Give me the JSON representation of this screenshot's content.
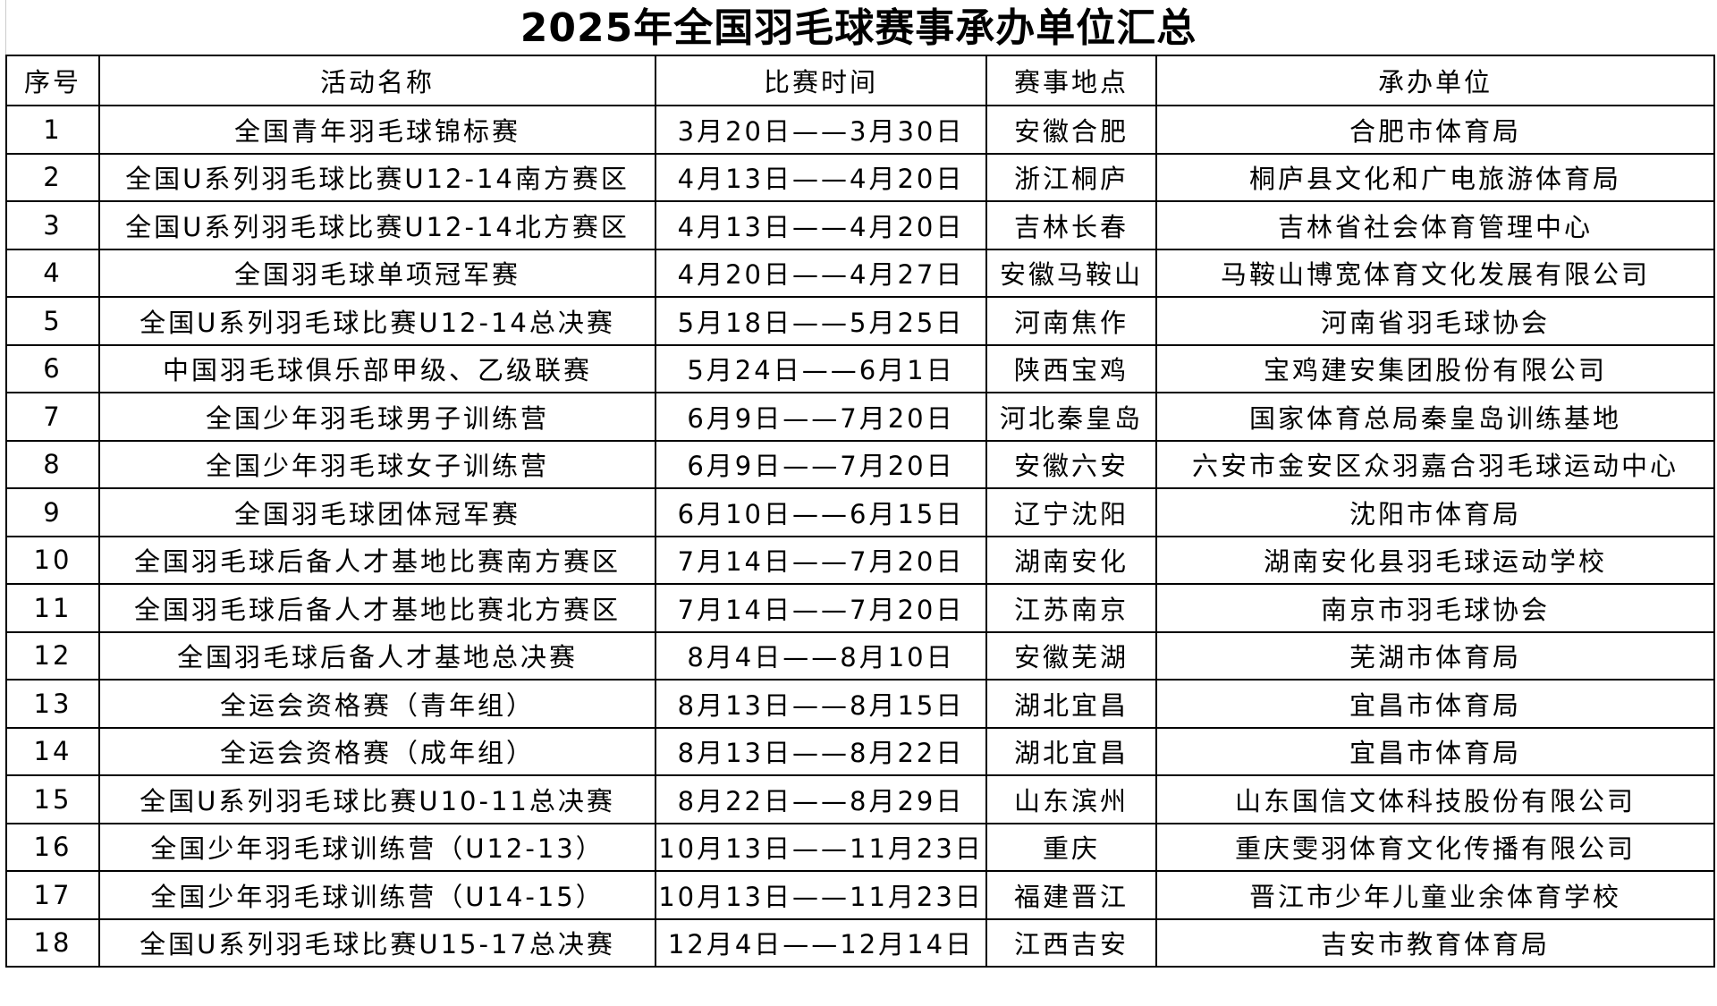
{
  "title": "2025年全国羽毛球赛事承办单位汇总",
  "columns": [
    "序号",
    "活动名称",
    "比赛时间",
    "赛事地点",
    "承办单位"
  ],
  "rows": [
    [
      "1",
      "全国青年羽毛球锦标赛",
      "3月20日——3月30日",
      "安徽合肥",
      "合肥市体育局"
    ],
    [
      "2",
      "全国U系列羽毛球比赛U12-14南方赛区",
      "4月13日——4月20日",
      "浙江桐庐",
      "桐庐县文化和广电旅游体育局"
    ],
    [
      "3",
      "全国U系列羽毛球比赛U12-14北方赛区",
      "4月13日——4月20日",
      "吉林长春",
      "吉林省社会体育管理中心"
    ],
    [
      "4",
      "全国羽毛球单项冠军赛",
      "4月20日——4月27日",
      "安徽马鞍山",
      "马鞍山博宽体育文化发展有限公司"
    ],
    [
      "5",
      "全国U系列羽毛球比赛U12-14总决赛",
      "5月18日——5月25日",
      "河南焦作",
      "河南省羽毛球协会"
    ],
    [
      "6",
      "中国羽毛球俱乐部甲级、乙级联赛",
      "5月24日——6月1日",
      "陕西宝鸡",
      "宝鸡建安集团股份有限公司"
    ],
    [
      "7",
      "全国少年羽毛球男子训练营",
      "6月9日——7月20日",
      "河北秦皇岛",
      "国家体育总局秦皇岛训练基地"
    ],
    [
      "8",
      "全国少年羽毛球女子训练营",
      "6月9日——7月20日",
      "安徽六安",
      "六安市金安区众羽嘉合羽毛球运动中心"
    ],
    [
      "9",
      "全国羽毛球团体冠军赛",
      "6月10日——6月15日",
      "辽宁沈阳",
      "沈阳市体育局"
    ],
    [
      "10",
      "全国羽毛球后备人才基地比赛南方赛区",
      "7月14日——7月20日",
      "湖南安化",
      "湖南安化县羽毛球运动学校"
    ],
    [
      "11",
      "全国羽毛球后备人才基地比赛北方赛区",
      "7月14日——7月20日",
      "江苏南京",
      "南京市羽毛球协会"
    ],
    [
      "12",
      "全国羽毛球后备人才基地总决赛",
      "8月4日——8月10日",
      "安徽芜湖",
      "芜湖市体育局"
    ],
    [
      "13",
      "全运会资格赛（青年组）",
      "8月13日——8月15日",
      "湖北宜昌",
      "宜昌市体育局"
    ],
    [
      "14",
      "全运会资格赛（成年组）",
      "8月13日——8月22日",
      "湖北宜昌",
      "宜昌市体育局"
    ],
    [
      "15",
      "全国U系列羽毛球比赛U10-11总决赛",
      "8月22日——8月29日",
      "山东滨州",
      "山东国信文体科技股份有限公司"
    ],
    [
      "16",
      "全国少年羽毛球训练营（U12-13）",
      "10月13日——11月23日",
      "重庆",
      "重庆雯羽体育文化传播有限公司"
    ],
    [
      "17",
      "全国少年羽毛球训练营（U14-15）",
      "10月13日——11月23日",
      "福建晋江",
      "晋江市少年儿童业余体育学校"
    ],
    [
      "18",
      "全国U系列羽毛球比赛U15-17总决赛",
      "12月4日——12月14日",
      "江西吉安",
      "吉安市教育体育局"
    ]
  ]
}
